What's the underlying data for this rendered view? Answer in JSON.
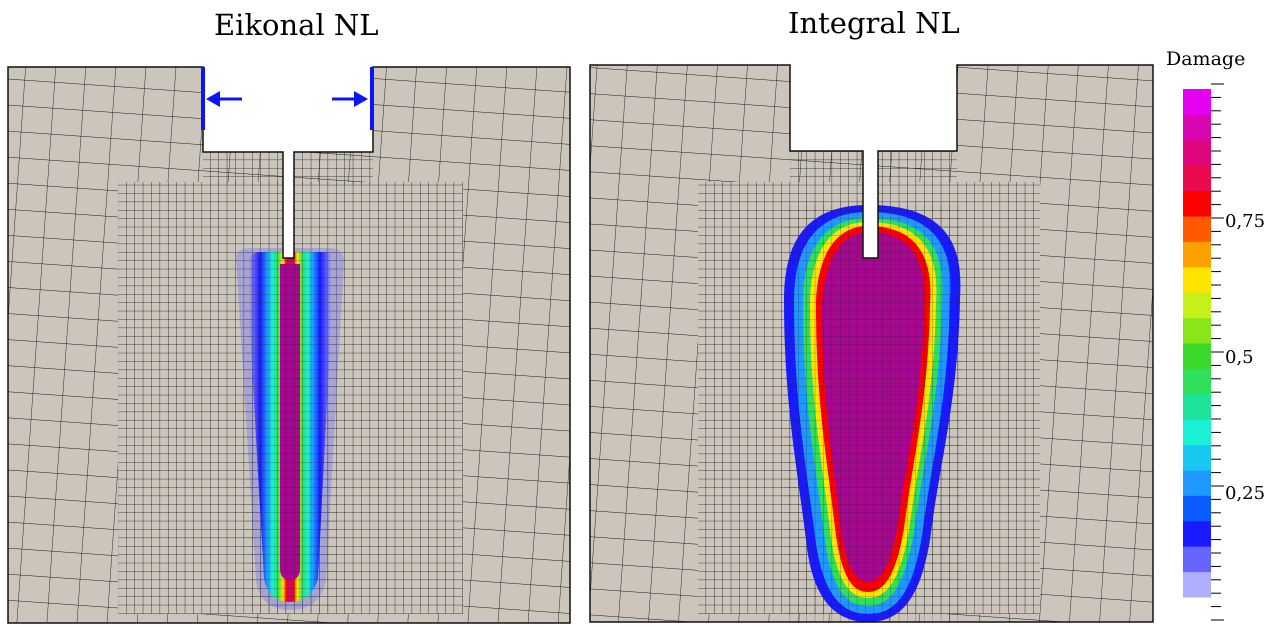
{
  "panels": [
    {
      "title": "Eikonal NL"
    },
    {
      "title": "Integral NL"
    }
  ],
  "legend": {
    "title": "Damage",
    "tick_labels": [
      {
        "value": 0.75,
        "text": "0,75"
      },
      {
        "value": 0.5,
        "text": "0,5"
      },
      {
        "value": 0.25,
        "text": "0,25"
      }
    ],
    "colors": [
      "#aeb0ff",
      "#6666ff",
      "#1a1aff",
      "#0a5cff",
      "#1f99ff",
      "#18c8f0",
      "#19f0d6",
      "#1ee29a",
      "#2ee05a",
      "#3ad82a",
      "#8ae61a",
      "#c6f01a",
      "#ffe400",
      "#ffa000",
      "#ff5a00",
      "#ff0000",
      "#ea0a4e",
      "#e0067e",
      "#d806b0",
      "#e400f0"
    ]
  },
  "colors": {
    "mesh_fill": "#cbc5bb",
    "mesh_line": "#1a1a1a",
    "load_arrow": "#0a14ff"
  }
}
